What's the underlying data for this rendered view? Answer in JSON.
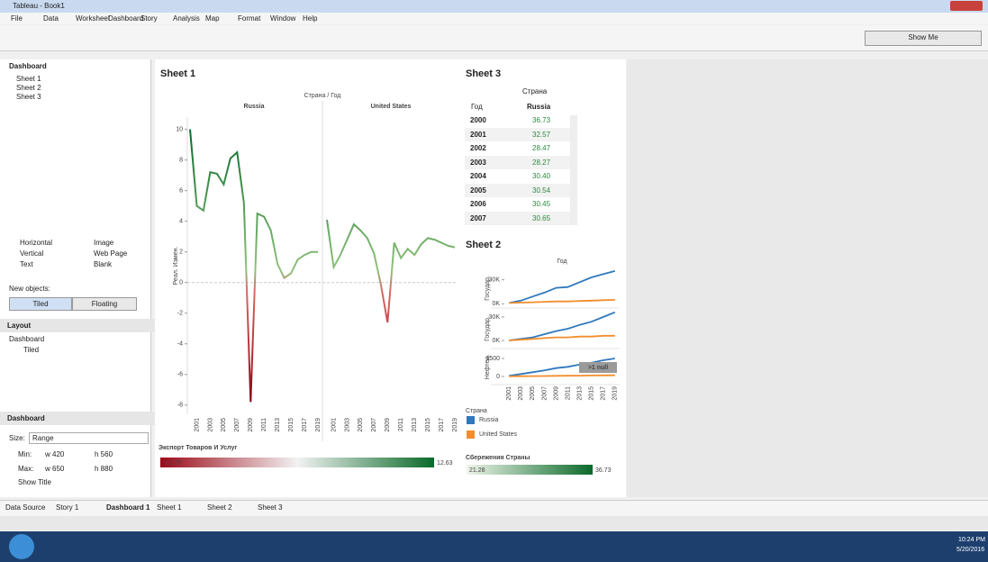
{
  "window": {
    "title": "Tableau - Book1"
  },
  "menu": [
    "File",
    "Data",
    "Worksheet",
    "Dashboard",
    "Story",
    "Analysis",
    "Map",
    "Format",
    "Window",
    "Help"
  ],
  "toolbar": {
    "show_me": "Show Me"
  },
  "left_panel": {
    "dashboard_header": "Dashboard",
    "sheets": [
      "Sheet 1",
      "Sheet 2",
      "Sheet 3"
    ],
    "objects": [
      "Horizontal",
      "Image",
      "Vertical",
      "Web Page",
      "Text",
      "Blank"
    ],
    "new_objects": "New objects:",
    "tiled": "Tiled",
    "floating": "Floating",
    "layout_header": "Layout",
    "layout_root": "Dashboard",
    "layout_item": "Tiled",
    "size_header": "Dashboard",
    "size_label": "Size:",
    "size_value": "Range",
    "min_label": "Min:",
    "min_w": "w 420",
    "min_h": "h 560",
    "max_label": "Max:",
    "max_w": "w 650",
    "max_h": "h 880",
    "show_title": "Show Title"
  },
  "sheet1": {
    "title": "Sheet 1",
    "column_header": "Страна / Год",
    "y_label": "Реал. Измен.",
    "xlim": [
      1999.6,
      2019.4
    ],
    "x": [
      2000,
      2001,
      2002,
      2003,
      2004,
      2005,
      2006,
      2007,
      2008,
      2009,
      2010,
      2011,
      2012,
      2013,
      2014,
      2015,
      2016,
      2017,
      2018,
      2019
    ],
    "xticks": [
      2001,
      2003,
      2005,
      2007,
      2009,
      2011,
      2013,
      2015,
      2017,
      2019
    ],
    "ylim": [
      -8.6,
      10.8
    ],
    "yticks": [
      -8,
      -6,
      -4,
      -2,
      0,
      2,
      4,
      6,
      8,
      10
    ],
    "panels": [
      {
        "name": "Russia",
        "values": [
          10,
          5,
          4.7,
          7.2,
          7.1,
          6.4,
          8.1,
          8.5,
          5.2,
          -7.8,
          4.5,
          4.3,
          3.4,
          1.2,
          0.3,
          0.6,
          1.5,
          1.8,
          2,
          2
        ]
      },
      {
        "name": "United States",
        "values": [
          4.1,
          1,
          1.8,
          2.8,
          3.8,
          3.4,
          2.9,
          1.9,
          -0.1,
          -2.6,
          2.6,
          1.6,
          2.2,
          1.8,
          2.5,
          2.9,
          2.8,
          2.6,
          2.4,
          2.3
        ]
      }
    ],
    "color_legend": {
      "title": "Экспорт Товаров И Услуг",
      "min": -12.75,
      "max": 12.63
    }
  },
  "sheet3": {
    "title": "Sheet 3",
    "col_header": "Страна",
    "row_header": "Год",
    "column": "Russia",
    "rows": [
      [
        "2000",
        "36.73"
      ],
      [
        "2001",
        "32.57"
      ],
      [
        "2002",
        "28.47"
      ],
      [
        "2003",
        "28.27"
      ],
      [
        "2004",
        "30.40"
      ],
      [
        "2005",
        "30.54"
      ],
      [
        "2006",
        "30.45"
      ],
      [
        "2007",
        "30.65"
      ]
    ]
  },
  "sheet2": {
    "title": "Sheet 2",
    "col_header": "Год",
    "xlim": [
      2000.2,
      2019.8
    ],
    "x": [
      2001,
      2003,
      2005,
      2007,
      2009,
      2011,
      2013,
      2015,
      2017,
      2019
    ],
    "panels": [
      {
        "label": "Государ.",
        "ylim": [
          -3000,
          42000
        ],
        "yticks": [
          {
            "value": 0,
            "label": "0K"
          },
          {
            "value": 30000,
            "label": "30K"
          }
        ],
        "series": [
          {
            "color": "#2f78bd",
            "values": [
              1000,
              4000,
              9000,
              14000,
              20000,
              21000,
              27000,
              33000,
              37000,
              41000
            ]
          },
          {
            "color": "#f28e2b",
            "values": [
              1000,
              1500,
              2000,
              2500,
              3000,
              3000,
              3500,
              4000,
              4500,
              5000
            ]
          }
        ]
      },
      {
        "label": "Государ.",
        "ylim": [
          -8000,
          38000
        ],
        "yticks": [
          {
            "value": 0,
            "label": "0K"
          },
          {
            "value": 30000,
            "label": "30K"
          }
        ],
        "series": [
          {
            "color": "#2f78bd",
            "values": [
              0,
              2000,
              4000,
              8000,
              12000,
              15000,
              20000,
              24000,
              30000,
              36000
            ]
          },
          {
            "color": "#f28e2b",
            "values": [
              0,
              1000,
              2000,
              3000,
              4000,
              4000,
              5000,
              5000,
              6000,
              6000
            ]
          }
        ]
      },
      {
        "label": "Нефтед.",
        "ylim": [
          -525,
          2100
        ],
        "yticks": [
          0,
          1500
        ],
        "series": [
          {
            "color": "#2f78bd",
            "values": [
              50,
              200,
              350,
              500,
              700,
              800,
              1000,
              1150,
              1350,
              1500
            ]
          },
          {
            "color": "#f28e2b",
            "values": [
              10,
              20,
              30,
              40,
              50,
              60,
              70,
              80,
              90,
              100
            ]
          }
        ]
      }
    ],
    "null_note": ">1 null"
  },
  "country_legend": {
    "title": "Страна",
    "items": [
      {
        "name": "Russia",
        "color": "#2f78bd"
      },
      {
        "name": "United States",
        "color": "#f28e2b"
      }
    ]
  },
  "savings_legend": {
    "title": "Сбережения Страны",
    "min": 21.28,
    "max": 36.73
  },
  "tabs": [
    "Data Source",
    "Story 1",
    "Dashboard 1",
    "Sheet 1",
    "Sheet 2",
    "Sheet 3"
  ],
  "taskbar": {
    "time": "10:24 PM",
    "date": "5/20/2016"
  }
}
